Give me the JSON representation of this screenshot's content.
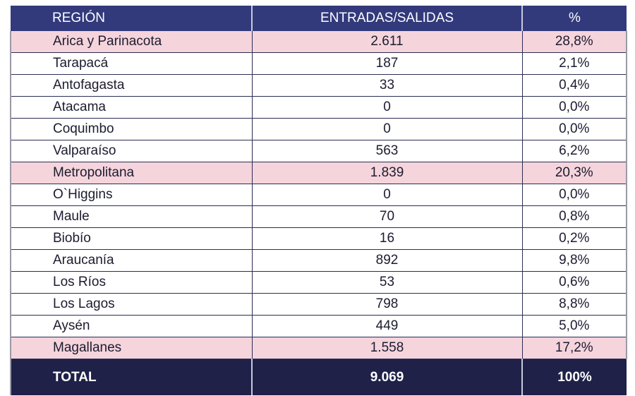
{
  "table": {
    "headers": [
      "REGIÓN",
      "ENTRADAS/SALIDAS",
      "%"
    ],
    "rows": [
      {
        "region": "Arica y Parinacota",
        "value": "2.611",
        "pct": "28,8%",
        "highlight": true
      },
      {
        "region": "Tarapacá",
        "value": "187",
        "pct": "2,1%",
        "highlight": false
      },
      {
        "region": "Antofagasta",
        "value": "33",
        "pct": "0,4%",
        "highlight": false
      },
      {
        "region": "Atacama",
        "value": "0",
        "pct": "0,0%",
        "highlight": false
      },
      {
        "region": "Coquimbo",
        "value": "0",
        "pct": "0,0%",
        "highlight": false
      },
      {
        "region": "Valparaíso",
        "value": "563",
        "pct": "6,2%",
        "highlight": false
      },
      {
        "region": "Metropolitana",
        "value": "1.839",
        "pct": "20,3%",
        "highlight": true
      },
      {
        "region": "O`Higgins",
        "value": "0",
        "pct": "0,0%",
        "highlight": false
      },
      {
        "region": "Maule",
        "value": "70",
        "pct": "0,8%",
        "highlight": false
      },
      {
        "region": "Biobío",
        "value": "16",
        "pct": "0,2%",
        "highlight": false
      },
      {
        "region": "Araucanía",
        "value": "892",
        "pct": "9,8%",
        "highlight": false
      },
      {
        "region": "Los Ríos",
        "value": "53",
        "pct": "0,6%",
        "highlight": false
      },
      {
        "region": "Los Lagos",
        "value": "798",
        "pct": "8,8%",
        "highlight": false
      },
      {
        "region": "Aysén",
        "value": "449",
        "pct": "5,0%",
        "highlight": false
      },
      {
        "region": "Magallanes",
        "value": "1.558",
        "pct": "17,2%",
        "highlight": true
      }
    ],
    "total": {
      "label": "TOTAL",
      "value": "9.069",
      "pct": "100%"
    }
  },
  "colors": {
    "header_bg": "#323a7c",
    "total_bg": "#1f2149",
    "highlight_bg": "#f5d4dc"
  }
}
